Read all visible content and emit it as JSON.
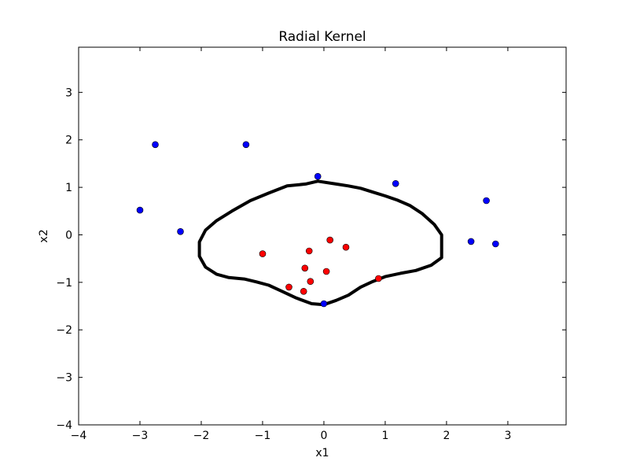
{
  "chart_data": {
    "type": "scatter",
    "title": "Radial Kernel",
    "xlabel": "x1",
    "ylabel": "x2",
    "xlim": [
      -4,
      3.95
    ],
    "ylim": [
      -4,
      3.95
    ],
    "grid": false,
    "xticks": [
      {
        "value": -4,
        "label": "−4"
      },
      {
        "value": -3,
        "label": "−3"
      },
      {
        "value": -2,
        "label": "−2"
      },
      {
        "value": -1,
        "label": "−1"
      },
      {
        "value": 0,
        "label": "0"
      },
      {
        "value": 1,
        "label": "1"
      },
      {
        "value": 2,
        "label": "2"
      },
      {
        "value": 3,
        "label": "3"
      }
    ],
    "yticks": [
      {
        "value": -4,
        "label": "−4"
      },
      {
        "value": -3,
        "label": "−3"
      },
      {
        "value": -2,
        "label": "−2"
      },
      {
        "value": -1,
        "label": "−1"
      },
      {
        "value": 0,
        "label": "0"
      },
      {
        "value": 1,
        "label": "1"
      },
      {
        "value": 2,
        "label": "2"
      },
      {
        "value": 3,
        "label": "3"
      }
    ],
    "series": [
      {
        "color": "#0000ff",
        "points": [
          {
            "x": -2.75,
            "y": 1.9
          },
          {
            "x": -1.27,
            "y": 1.9
          },
          {
            "x": -3.0,
            "y": 0.52
          },
          {
            "x": -2.34,
            "y": 0.07
          },
          {
            "x": -0.1,
            "y": 1.23
          },
          {
            "x": 1.17,
            "y": 1.08
          },
          {
            "x": 2.65,
            "y": 0.72
          },
          {
            "x": 2.4,
            "y": -0.14
          },
          {
            "x": 2.8,
            "y": -0.19
          },
          {
            "x": 0.0,
            "y": -1.45
          }
        ]
      },
      {
        "color": "#ff0000",
        "points": [
          {
            "x": -1.0,
            "y": -0.4
          },
          {
            "x": -0.24,
            "y": -0.34
          },
          {
            "x": 0.1,
            "y": -0.11
          },
          {
            "x": 0.36,
            "y": -0.26
          },
          {
            "x": -0.31,
            "y": -0.7
          },
          {
            "x": 0.04,
            "y": -0.77
          },
          {
            "x": -0.22,
            "y": -0.98
          },
          {
            "x": -0.57,
            "y": -1.1
          },
          {
            "x": -0.33,
            "y": -1.19
          },
          {
            "x": 0.89,
            "y": -0.92
          }
        ]
      }
    ],
    "decision_boundary": {
      "color": "#000000",
      "points": [
        [
          -0.3,
          1.07
        ],
        [
          -0.1,
          1.13
        ],
        [
          0.2,
          1.07
        ],
        [
          0.4,
          1.03
        ],
        [
          0.6,
          0.98
        ],
        [
          0.8,
          0.9
        ],
        [
          1.0,
          0.82
        ],
        [
          1.2,
          0.73
        ],
        [
          1.4,
          0.62
        ],
        [
          1.6,
          0.45
        ],
        [
          1.8,
          0.22
        ],
        [
          1.92,
          0.0
        ],
        [
          1.92,
          -0.48
        ],
        [
          1.75,
          -0.64
        ],
        [
          1.5,
          -0.75
        ],
        [
          1.25,
          -0.81
        ],
        [
          1.0,
          -0.88
        ],
        [
          0.8,
          -0.98
        ],
        [
          0.6,
          -1.1
        ],
        [
          0.4,
          -1.27
        ],
        [
          0.2,
          -1.38
        ],
        [
          0.0,
          -1.47
        ],
        [
          -0.2,
          -1.45
        ],
        [
          -0.45,
          -1.33
        ],
        [
          -0.7,
          -1.18
        ],
        [
          -0.9,
          -1.06
        ],
        [
          -1.1,
          -0.99
        ],
        [
          -1.3,
          -0.93
        ],
        [
          -1.55,
          -0.9
        ],
        [
          -1.75,
          -0.83
        ],
        [
          -1.93,
          -0.68
        ],
        [
          -2.03,
          -0.45
        ],
        [
          -2.03,
          -0.15
        ],
        [
          -1.93,
          0.1
        ],
        [
          -1.75,
          0.3
        ],
        [
          -1.5,
          0.5
        ],
        [
          -1.2,
          0.72
        ],
        [
          -0.9,
          0.88
        ],
        [
          -0.6,
          1.03
        ],
        [
          -0.3,
          1.07
        ]
      ]
    }
  }
}
